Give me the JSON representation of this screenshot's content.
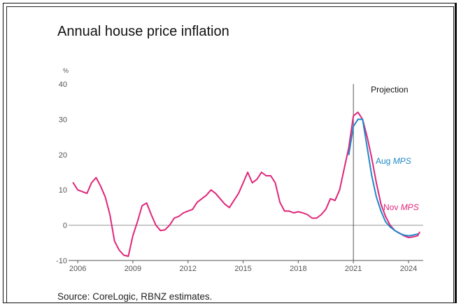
{
  "chart_data": {
    "type": "line",
    "title": "Annual house price inflation",
    "ylabel": "%",
    "ylim": [
      -10,
      40
    ],
    "xlim": [
      2005.5,
      2024.8
    ],
    "yticks": [
      -10,
      0,
      10,
      20,
      30,
      40
    ],
    "xticks": [
      2006,
      2009,
      2012,
      2015,
      2018,
      2021,
      2024
    ],
    "grid": false,
    "projection_start": 2021,
    "projection_label": "Projection",
    "source": "Source: CoreLogic, RBNZ estimates.",
    "series": [
      {
        "name": "Nov MPS",
        "label_plain": "Nov",
        "label_italic": "MPS",
        "color": "#e0267a",
        "x": [
          2005.75,
          2006.0,
          2006.25,
          2006.5,
          2006.75,
          2007.0,
          2007.25,
          2007.5,
          2007.75,
          2008.0,
          2008.25,
          2008.5,
          2008.75,
          2009.0,
          2009.25,
          2009.5,
          2009.75,
          2010.0,
          2010.25,
          2010.5,
          2010.75,
          2011.0,
          2011.25,
          2011.5,
          2011.75,
          2012.0,
          2012.25,
          2012.5,
          2012.75,
          2013.0,
          2013.25,
          2013.5,
          2013.75,
          2014.0,
          2014.25,
          2014.5,
          2014.75,
          2015.0,
          2015.25,
          2015.5,
          2015.75,
          2016.0,
          2016.25,
          2016.5,
          2016.75,
          2017.0,
          2017.25,
          2017.5,
          2017.75,
          2018.0,
          2018.25,
          2018.5,
          2018.75,
          2019.0,
          2019.25,
          2019.5,
          2019.75,
          2020.0,
          2020.25,
          2020.5,
          2020.75,
          2021.0,
          2021.25,
          2021.5,
          2021.75,
          2022.0,
          2022.25,
          2022.5,
          2022.75,
          2023.0,
          2023.25,
          2023.5,
          2023.75,
          2024.0,
          2024.25,
          2024.5,
          2024.6
        ],
        "y": [
          12,
          10,
          9.5,
          9,
          12,
          13.5,
          11,
          8,
          3,
          -4.5,
          -7,
          -8.5,
          -8.8,
          -3,
          1,
          5.5,
          6.3,
          3,
          0,
          -1.5,
          -1.3,
          0,
          2,
          2.5,
          3.5,
          4,
          4.5,
          6.5,
          7.5,
          8.5,
          10,
          9,
          7.5,
          6,
          5,
          7,
          9,
          12,
          15,
          12,
          13,
          15,
          14,
          14,
          12,
          6.5,
          4,
          4,
          3.5,
          3.8,
          3.5,
          3,
          2,
          2,
          3,
          4.5,
          7.5,
          7,
          10,
          16,
          22,
          31,
          32,
          30,
          25,
          19,
          12,
          6,
          2.5,
          0,
          -1.5,
          -2.2,
          -3,
          -3.5,
          -3.3,
          -3,
          -2
        ]
      },
      {
        "name": "Aug MPS",
        "label_plain": "Aug",
        "label_italic": "MPS",
        "color": "#1f87c8",
        "x": [
          2020.75,
          2021.0,
          2021.25,
          2021.5,
          2021.75,
          2022.0,
          2022.25,
          2022.5,
          2022.75,
          2023.0,
          2023.25,
          2023.5,
          2023.75,
          2024.0,
          2024.25,
          2024.5
        ],
        "y": [
          20,
          28,
          30,
          30,
          22,
          14,
          8,
          4,
          1,
          -0.5,
          -1.5,
          -2.3,
          -2.8,
          -3,
          -2.8,
          -2.5
        ]
      }
    ]
  }
}
